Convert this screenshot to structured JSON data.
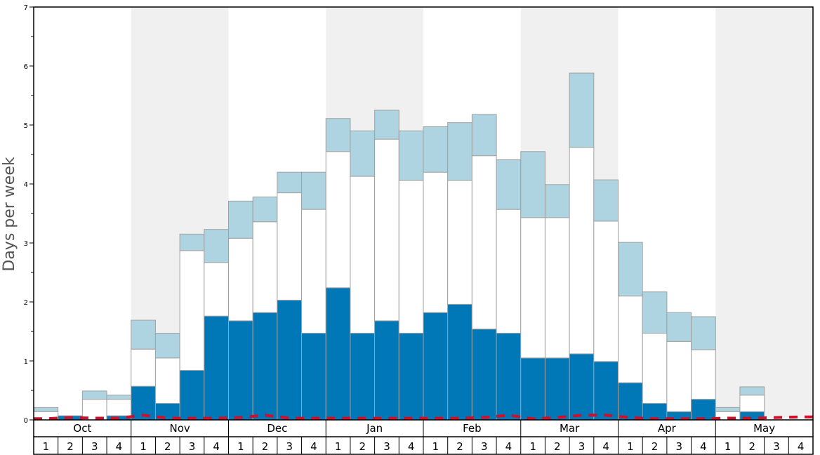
{
  "chart_data": {
    "type": "bar",
    "ylabel": "Days per week",
    "ylim": [
      0,
      7
    ],
    "yticks": [
      0,
      1,
      2,
      3,
      4,
      5,
      6,
      7
    ],
    "months": [
      "Oct",
      "Nov",
      "Dec",
      "Jan",
      "Feb",
      "Mar",
      "Apr",
      "May"
    ],
    "weeks": [
      "1",
      "2",
      "3",
      "4"
    ],
    "shaded_months": [
      "Nov",
      "Jan",
      "Mar",
      "May"
    ],
    "colors": {
      "dark": "#0077b6",
      "white": "#ffffff",
      "light": "#add4e0",
      "shade": "#f0f0f0",
      "dash": "#d0102a",
      "bar_edge": "#a0a0a0"
    },
    "series": [
      {
        "role": "dark",
        "values": [
          0.0,
          0.07,
          0.0,
          0.07,
          0.57,
          0.28,
          0.84,
          1.76,
          1.68,
          1.82,
          2.03,
          1.47,
          2.24,
          1.47,
          1.68,
          1.47,
          1.82,
          1.96,
          1.54,
          1.47,
          1.05,
          1.05,
          1.12,
          0.99,
          0.63,
          0.28,
          0.14,
          0.35,
          0.0,
          0.14,
          0.0,
          0.0
        ]
      },
      {
        "role": "white",
        "values": [
          0.14,
          0.0,
          0.35,
          0.28,
          0.63,
          0.77,
          2.03,
          0.91,
          1.4,
          1.54,
          1.82,
          2.1,
          2.31,
          2.66,
          3.08,
          2.59,
          2.38,
          2.1,
          2.94,
          2.1,
          2.38,
          2.38,
          3.5,
          2.38,
          1.47,
          1.19,
          1.19,
          0.84,
          0.14,
          0.28,
          0.0,
          0.0
        ]
      },
      {
        "role": "light",
        "values": [
          0.07,
          0.0,
          0.14,
          0.07,
          0.49,
          0.42,
          0.28,
          0.56,
          0.63,
          0.42,
          0.35,
          0.63,
          0.56,
          0.77,
          0.49,
          0.84,
          0.77,
          0.98,
          0.7,
          0.84,
          1.12,
          0.56,
          1.26,
          0.7,
          0.91,
          0.7,
          0.49,
          0.56,
          0.07,
          0.14,
          0.0,
          0.0
        ]
      }
    ],
    "dashed_line": [
      0.02,
      0.04,
      0.03,
      0.03,
      0.08,
      0.03,
      0.03,
      0.03,
      0.04,
      0.08,
      0.03,
      0.03,
      0.03,
      0.03,
      0.03,
      0.03,
      0.03,
      0.03,
      0.04,
      0.08,
      0.02,
      0.04,
      0.08,
      0.08,
      0.04,
      0.02,
      0.02,
      0.02,
      0.03,
      0.03,
      0.04,
      0.05
    ]
  }
}
